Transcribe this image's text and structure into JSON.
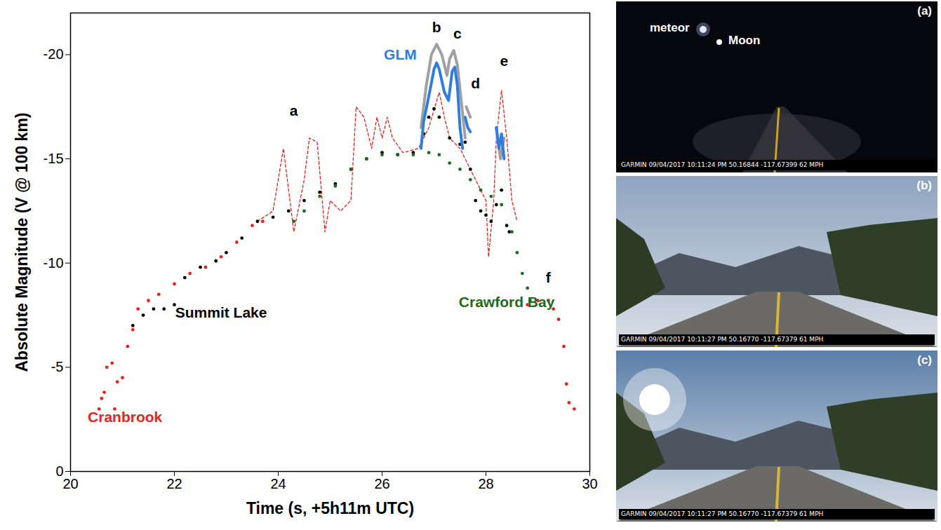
{
  "chart_data": {
    "type": "scatter",
    "x_label": "Time (s, +5h11m UTC)",
    "y_label": "Absolute Magnitude (V @ 100 km)",
    "xlim": [
      20,
      30
    ],
    "xticks": [
      20,
      22,
      24,
      26,
      28,
      30
    ],
    "ylim": [
      0,
      -22
    ],
    "yticks": [
      0,
      -5,
      -10,
      -15,
      -20
    ],
    "grid": false,
    "series": [
      {
        "color": "#e8231d",
        "type": "line",
        "line_style": "dashed",
        "x": [
          23.6,
          23.9,
          24.1,
          24.3,
          24.5,
          24.6,
          24.75,
          24.9,
          25.0,
          25.2,
          25.4,
          25.5,
          25.65,
          25.8,
          25.9,
          26.0,
          26.1,
          26.2,
          26.4,
          26.7,
          26.9,
          27.1,
          27.2,
          27.3,
          27.5,
          27.8,
          28.0,
          28.05,
          28.15,
          28.2,
          28.3,
          28.4,
          28.5,
          28.6
        ],
        "values": [
          -12,
          -12.5,
          -15.5,
          -11.5,
          -14,
          -16,
          -15.8,
          -11.5,
          -13,
          -12.5,
          -13,
          -17.5,
          -17,
          -15.5,
          -17,
          -16,
          -17,
          -16,
          -15.3,
          -15.5,
          -16.5,
          -18.2,
          -17,
          -16,
          -15.5,
          -14,
          -13,
          -10.3,
          -13,
          -16,
          -18.3,
          -16,
          -13,
          -12
        ]
      },
      {
        "name": "Cranbrook",
        "color": "#e8231d",
        "type": "scatter",
        "marker": "circle",
        "x": [
          20.55,
          20.6,
          20.65,
          20.7,
          20.8,
          20.85,
          20.9,
          21.0,
          21.1,
          21.2,
          21.3,
          21.5,
          21.7,
          22.0,
          22.3,
          22.6,
          22.9,
          23.2,
          23.5,
          23.7,
          28.8,
          29.0,
          29.2,
          29.3,
          29.4,
          29.5,
          29.55,
          29.6,
          29.7
        ],
        "values": [
          -3,
          -3.5,
          -3.8,
          -5,
          -5.2,
          -3,
          -4.3,
          -4.5,
          -6,
          -6.8,
          -7.8,
          -8.2,
          -8.5,
          -9,
          -9.5,
          -9.8,
          -10.3,
          -11,
          -11.8,
          -12,
          -8,
          -8.2,
          -8.2,
          -7.8,
          -7.3,
          -6,
          -4.2,
          -3.3,
          -3
        ]
      },
      {
        "name": "Summit Lake",
        "color": "#000000",
        "type": "scatter",
        "marker": "circle",
        "x": [
          21.2,
          21.4,
          21.6,
          21.8,
          22.0,
          22.2,
          22.5,
          22.8,
          23.0,
          23.3,
          23.6,
          23.9,
          24.2,
          24.5,
          24.8,
          25.1,
          25.4,
          25.7,
          26.0,
          26.3,
          26.6,
          26.8,
          26.9,
          27.0,
          27.1,
          27.3,
          27.5,
          27.6,
          27.7,
          27.8,
          27.9,
          28.0,
          28.1,
          28.2,
          28.3,
          28.4,
          28.45
        ],
        "values": [
          -7,
          -7.5,
          -7.8,
          -7.8,
          -8,
          -9.3,
          -9.8,
          -10.1,
          -10.5,
          -11.2,
          -12,
          -12.2,
          -12.5,
          -13,
          -13.4,
          -13.8,
          -14.5,
          -15,
          -15.3,
          -15.2,
          -15.3,
          -16.2,
          -17,
          -17.4,
          -17,
          -16,
          -15.7,
          -15.8,
          -14.5,
          -13,
          -12.5,
          -12.3,
          -12,
          -12.8,
          -13.5,
          -11.8,
          -11.5
        ]
      },
      {
        "name": "Crawford Bay",
        "color": "#1d6b1d",
        "type": "scatter",
        "marker": "circle",
        "x": [
          24.3,
          24.5,
          24.8,
          25.1,
          25.4,
          25.7,
          26.0,
          26.3,
          26.6,
          26.9,
          27.1,
          27.3,
          27.5,
          27.7,
          27.9,
          28.1,
          28.3,
          28.5,
          28.6,
          28.7,
          28.8,
          28.85
        ],
        "values": [
          -12,
          -12.5,
          -13.2,
          -13.7,
          -14.5,
          -15,
          -15.2,
          -15.2,
          -15.2,
          -15.3,
          -15.2,
          -14.8,
          -14.5,
          -14,
          -13.5,
          -13.2,
          -12.8,
          -11.5,
          -10.5,
          -9.5,
          -8.8,
          -8.2
        ]
      },
      {
        "color": "#a0a0a0",
        "type": "line",
        "line_style": "solid",
        "x": [
          26.75,
          26.85,
          26.95,
          27.05,
          27.15,
          27.25,
          27.3,
          27.38,
          27.45,
          27.55,
          27.6,
          27.61,
          27.62,
          27.7,
          27.8,
          28.2,
          28.28,
          28.35
        ],
        "values": [
          -16.5,
          -18.5,
          -20,
          -20.5,
          -20,
          -19,
          -19.8,
          -20.2,
          -19.5,
          -17.2,
          -16,
          null,
          -17.5,
          -17,
          null,
          -16.5,
          -15,
          -16
        ]
      },
      {
        "name": "GLM",
        "color": "#2f7de1",
        "type": "line",
        "line_style": "solid",
        "x": [
          26.75,
          26.8,
          26.9,
          27.0,
          27.05,
          27.1,
          27.2,
          27.28,
          27.35,
          27.4,
          27.45,
          27.5,
          27.55,
          27.58,
          27.6,
          27.65,
          27.7,
          27.8,
          28.2,
          28.25,
          28.3,
          28.35
        ],
        "values": [
          -15.5,
          -16.8,
          -18,
          -19.3,
          -19.6,
          -19.3,
          -18.2,
          -17.8,
          -19.2,
          -19.4,
          -18.5,
          -16.5,
          -15.5,
          null,
          -17,
          -16.5,
          -16.3,
          null,
          -16.5,
          -15.5,
          -16.2,
          -15
        ]
      }
    ],
    "annotations": [
      {
        "text": "a",
        "x": 24.3,
        "y": -17.3,
        "color": "#000000"
      },
      {
        "text": "b",
        "x": 27.05,
        "y": -21.3,
        "color": "#000000"
      },
      {
        "text": "c",
        "x": 27.45,
        "y": -21.0,
        "color": "#000000"
      },
      {
        "text": "d",
        "x": 27.8,
        "y": -18.6,
        "color": "#000000"
      },
      {
        "text": "e",
        "x": 28.35,
        "y": -19.7,
        "color": "#000000"
      },
      {
        "text": "f",
        "x": 29.2,
        "y": -9.3,
        "color": "#000000"
      },
      {
        "text": "GLM",
        "x": 26.35,
        "y": -20.0,
        "color": "#2f7de1"
      },
      {
        "text": "Summit Lake",
        "x": 22.9,
        "y": -7.6,
        "color": "#000000"
      },
      {
        "text": "Crawford Bay",
        "x": 28.4,
        "y": -8.1,
        "color": "#1d6b1d"
      },
      {
        "text": "Cranbrook",
        "x": 21.05,
        "y": -2.6,
        "color": "#e8231d"
      }
    ]
  },
  "photo_panels": [
    {
      "label": "(a)",
      "annotations": [
        "meteor",
        "Moon"
      ],
      "caption": "GARMIN 09/04/2017 10:11:24 PM 50.16844 -117.67399 62 MPH"
    },
    {
      "label": "(b)",
      "annotations": [],
      "caption": "GARMIN 09/04/2017 10:11:27 PM 50.16770 -117.67379 61 MPH"
    },
    {
      "label": "(c)",
      "annotations": [],
      "caption": "GARMIN 09/04/2017 10:11:27 PM 50.16770 -117.67379 61 MPH"
    }
  ]
}
